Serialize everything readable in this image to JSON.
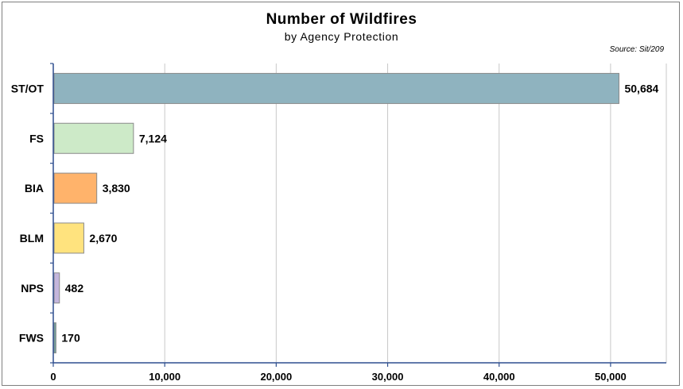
{
  "chart_data": {
    "type": "bar",
    "orientation": "horizontal",
    "title": "Number of Wildfires",
    "subtitle": "by Agency Protection",
    "source": "Source: Sit/209",
    "categories": [
      "ST/OT",
      "FS",
      "BIA",
      "BLM",
      "NPS",
      "FWS"
    ],
    "values": [
      50684,
      7124,
      3830,
      2670,
      482,
      170
    ],
    "value_labels": [
      "50,684",
      "7,124",
      "3,830",
      "2,670",
      "482",
      "170"
    ],
    "bar_colors": [
      "#8fb3bf",
      "#cdeac8",
      "#ffb36b",
      "#ffe37e",
      "#c4b6dd",
      "#6fa6a0"
    ],
    "xlim": [
      0,
      55000
    ],
    "x_ticks": [
      0,
      10000,
      20000,
      30000,
      40000,
      50000
    ],
    "x_tick_labels": [
      "0",
      "10,000",
      "20,000",
      "30,000",
      "40,000",
      "50,000"
    ],
    "grid": "vertical",
    "xlabel": "",
    "ylabel": ""
  }
}
